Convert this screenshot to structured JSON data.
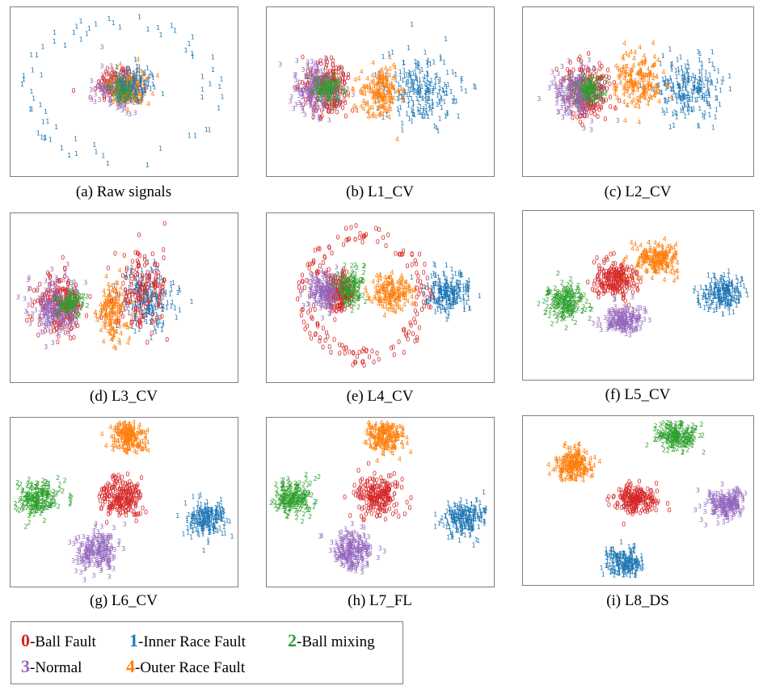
{
  "chart_data": {
    "type": "scatter",
    "panels": [
      {
        "caption": "(a) Raw signals"
      },
      {
        "caption": "(b) L1_CV"
      },
      {
        "caption": "(c) L2_CV"
      },
      {
        "caption": "(d) L3_CV"
      },
      {
        "caption": "(e) L4_CV"
      },
      {
        "caption": "(f) L5_CV"
      },
      {
        "caption": "(g) L6_CV"
      },
      {
        "caption": "(h) L7_FL"
      },
      {
        "caption": "(i) L8_DS"
      }
    ],
    "classes": [
      {
        "code": "0",
        "label": "-Ball Fault",
        "color": "#d62728"
      },
      {
        "code": "1",
        "label": "-Inner Race Fault",
        "color": "#1f77b4"
      },
      {
        "code": "2",
        "label": "-Ball mixing",
        "color": "#2ca02c"
      },
      {
        "code": "3",
        "label": "-Normal",
        "color": "#9467bd"
      },
      {
        "code": "4",
        "label": "-Outer Race Fault",
        "color": "#ff7f0e"
      }
    ]
  }
}
